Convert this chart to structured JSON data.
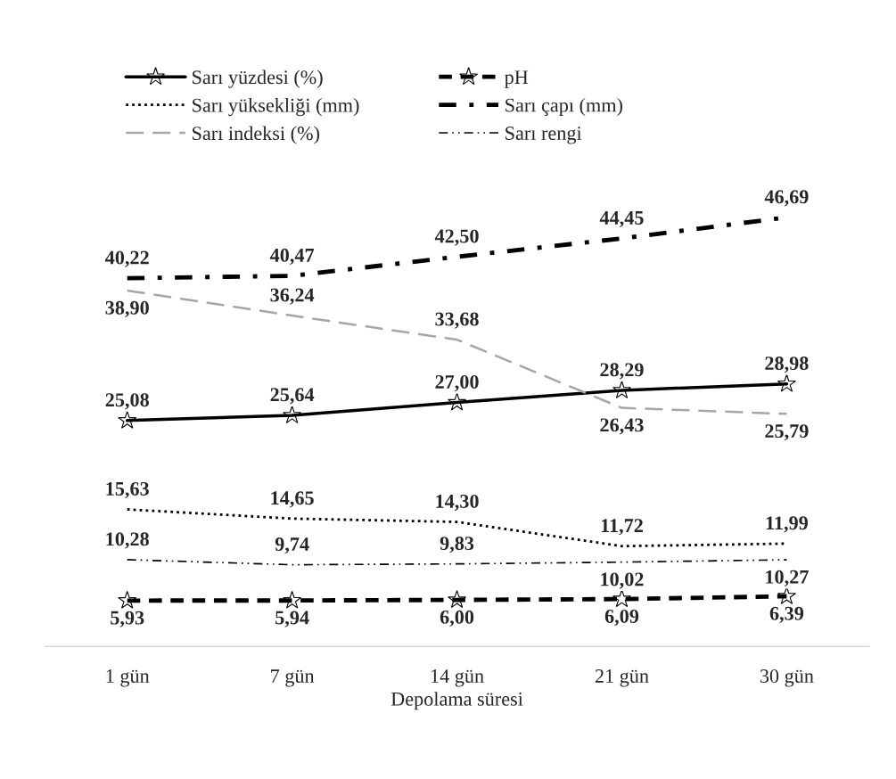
{
  "chart_data": {
    "type": "line",
    "xlabel": "Depolama süresi",
    "categories": [
      "1 gün",
      "7 gün",
      "14 gün",
      "21 gün",
      "30 gün"
    ],
    "series": [
      {
        "name": "Sarı yüzdesi (%)",
        "color": "#000000",
        "values": [
          25.08,
          25.64,
          27.0,
          28.29,
          28.98
        ],
        "value_labels": [
          "25,08",
          "25,64",
          "27,00",
          "28,29",
          "28,98"
        ],
        "line_style": "solid",
        "marker": "star"
      },
      {
        "name": "Sarı yüksekliği (mm)",
        "color": "#000000",
        "values": [
          15.63,
          14.65,
          14.3,
          11.72,
          11.99
        ],
        "value_labels": [
          "15,63",
          "14,65",
          "14,30",
          "11,72",
          "11,99"
        ],
        "line_style": "dotted",
        "marker": "none"
      },
      {
        "name": "Sarı indeksi (%)",
        "color": "#a6a6a6",
        "values": [
          38.9,
          36.24,
          33.68,
          26.43,
          25.79
        ],
        "value_labels": [
          "38,90",
          "36,24",
          "33,68",
          "26,43",
          "25,79"
        ],
        "line_style": "longdash",
        "marker": "none"
      },
      {
        "name": "pH",
        "color": "#000000",
        "values": [
          5.93,
          5.94,
          6.0,
          6.09,
          6.39
        ],
        "value_labels": [
          "5,93",
          "5,94",
          "6,00",
          "6,09",
          "6,39"
        ],
        "line_style": "dashed",
        "marker": "star"
      },
      {
        "name": "Sarı çapı (mm)",
        "color": "#000000",
        "values": [
          40.22,
          40.47,
          42.5,
          44.45,
          46.69
        ],
        "value_labels": [
          "40,22",
          "40,47",
          "42,50",
          "44,45",
          "46,69"
        ],
        "line_style": "dashdot",
        "marker": "none"
      },
      {
        "name": "Sarı rengi",
        "color": "#000000",
        "values": [
          10.28,
          9.74,
          9.83,
          10.02,
          10.27
        ],
        "value_labels": [
          "10,28",
          "9,74",
          "9,83",
          "10,02",
          "10,27"
        ],
        "line_style": "dashdotdot",
        "marker": "none"
      }
    ],
    "grid": false,
    "legend": "top"
  }
}
